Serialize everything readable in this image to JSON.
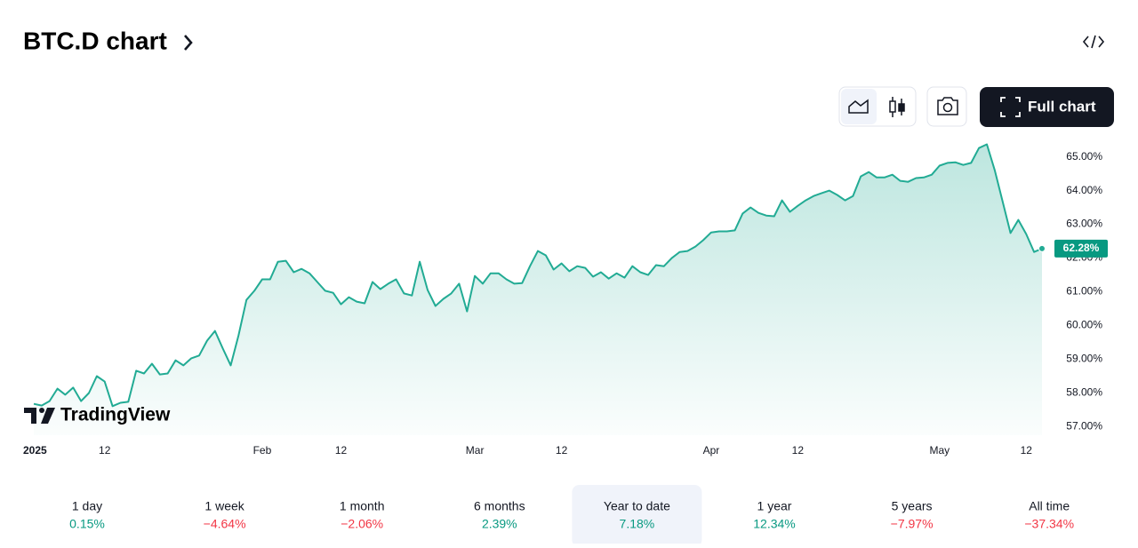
{
  "header": {
    "title": "BTC.D chart"
  },
  "toolbar": {
    "full_chart": "Full chart"
  },
  "logo": "TradingView",
  "chart_data": {
    "type": "line",
    "categories": [
      "2025",
      null,
      null,
      null,
      null,
      null,
      null,
      null,
      null,
      "12",
      null,
      null,
      null,
      null,
      null,
      null,
      null,
      null,
      null,
      null,
      null,
      null,
      null,
      null,
      null,
      null,
      null,
      null,
      null,
      "Feb",
      null,
      null,
      null,
      null,
      null,
      null,
      null,
      null,
      null,
      "12",
      null,
      null,
      null,
      null,
      null,
      null,
      null,
      null,
      null,
      null,
      null,
      null,
      null,
      null,
      null,
      null,
      "Mar",
      null,
      null,
      null,
      null,
      null,
      null,
      null,
      null,
      null,
      null,
      "12",
      null,
      null,
      null,
      null,
      null,
      null,
      null,
      null,
      null,
      null,
      null,
      null,
      null,
      null,
      null,
      null,
      null,
      null,
      "Apr",
      null,
      null,
      null,
      null,
      null,
      null,
      null,
      null,
      null,
      null,
      "12",
      null,
      null,
      null,
      null,
      null,
      null,
      null,
      null,
      null,
      null,
      null,
      null,
      null,
      null,
      null,
      null,
      null,
      "May",
      null,
      null,
      null,
      null,
      null,
      null,
      null,
      null,
      null,
      null,
      "12",
      null,
      null
    ],
    "series": [
      {
        "name": "BTC.D",
        "color": "#22ab94",
        "values": [
          57.68,
          57.63,
          57.76,
          58.13,
          57.95,
          58.16,
          57.76,
          58.0,
          58.5,
          58.34,
          57.61,
          57.71,
          57.74,
          58.66,
          58.58,
          58.87,
          58.55,
          58.58,
          58.97,
          58.82,
          59.03,
          59.11,
          59.55,
          59.84,
          59.32,
          58.82,
          59.71,
          60.76,
          61.03,
          61.37,
          61.37,
          61.89,
          61.92,
          61.58,
          61.68,
          61.55,
          61.29,
          61.03,
          60.97,
          60.63,
          60.84,
          60.71,
          60.66,
          61.29,
          61.08,
          61.24,
          61.37,
          60.95,
          60.89,
          61.89,
          61.05,
          60.58,
          60.79,
          60.95,
          61.24,
          60.42,
          61.47,
          61.24,
          61.55,
          61.55,
          61.37,
          61.24,
          61.26,
          61.76,
          62.21,
          62.08,
          61.66,
          61.84,
          61.61,
          61.76,
          61.71,
          61.45,
          61.58,
          61.39,
          61.55,
          61.42,
          61.76,
          61.58,
          61.5,
          61.79,
          61.76,
          62.0,
          62.18,
          62.21,
          62.34,
          62.53,
          62.76,
          62.79,
          62.79,
          62.82,
          63.32,
          63.5,
          63.34,
          63.26,
          63.24,
          63.71,
          63.37,
          63.55,
          63.71,
          63.84,
          63.92,
          64.0,
          63.87,
          63.71,
          63.84,
          64.42,
          64.55,
          64.39,
          64.39,
          64.47,
          64.29,
          64.26,
          64.37,
          64.39,
          64.47,
          64.74,
          64.82,
          64.84,
          64.76,
          64.82,
          65.26,
          65.37,
          64.61,
          63.68,
          62.74,
          63.13,
          62.71,
          62.18,
          62.28
        ],
        "value_labels": [
          null,
          null,
          null,
          null,
          null,
          null,
          null,
          null,
          null,
          null,
          null,
          null,
          null,
          null,
          null,
          null,
          null,
          null,
          null,
          null,
          null,
          null,
          null,
          null,
          null,
          null,
          null,
          null,
          null,
          null,
          null,
          null,
          null,
          null,
          null,
          null,
          null,
          null,
          null,
          null,
          null,
          null,
          null,
          null,
          null,
          null,
          null,
          null,
          null,
          null,
          null,
          null,
          null,
          null,
          null,
          null,
          null,
          null,
          null,
          null,
          null,
          null,
          null,
          null,
          null,
          null,
          null,
          null,
          null,
          null,
          null,
          null,
          null,
          null,
          null,
          null,
          null,
          null,
          null,
          null,
          null,
          null,
          null,
          null,
          null,
          null,
          null,
          null,
          null,
          null,
          null,
          null,
          null,
          null,
          null,
          null,
          null,
          null,
          null,
          null,
          null,
          null,
          null,
          null,
          null,
          null,
          null,
          null,
          null,
          null,
          null,
          null,
          null,
          null,
          null,
          null,
          null,
          null,
          null,
          null,
          null,
          null,
          null,
          null,
          null,
          null,
          null,
          null,
          "62.28%"
        ]
      }
    ],
    "ylim": [
      56.75,
      65.7
    ],
    "yticks": [
      {
        "value": 57,
        "label": "57.00%"
      },
      {
        "value": 58,
        "label": "58.00%"
      },
      {
        "value": 59,
        "label": "59.00%"
      },
      {
        "value": 60,
        "label": "60.00%"
      },
      {
        "value": 61,
        "label": "61.00%"
      },
      {
        "value": 62,
        "label": "62.00%"
      },
      {
        "value": 63,
        "label": "63.00%"
      },
      {
        "value": 64,
        "label": "64.00%"
      },
      {
        "value": 65,
        "label": "65.00%"
      }
    ],
    "grid": false
  },
  "periods": [
    {
      "label": "1 day",
      "change": "0.15%"
    },
    {
      "label": "1 week",
      "change": "−4.64%"
    },
    {
      "label": "1 month",
      "change": "−2.06%"
    },
    {
      "label": "6 months",
      "change": "2.39%"
    },
    {
      "label": "Year to date",
      "change": "7.18%",
      "selected": true
    },
    {
      "label": "1 year",
      "change": "12.34%"
    },
    {
      "label": "5 years",
      "change": "−7.97%"
    },
    {
      "label": "All time",
      "change": "−37.34%"
    }
  ]
}
